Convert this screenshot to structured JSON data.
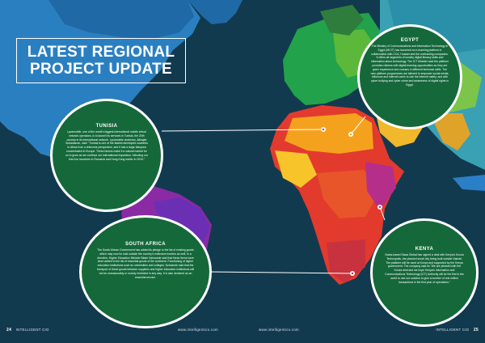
{
  "title": {
    "line1": "LATEST REGIONAL",
    "line2": "PROJECT UPDATE"
  },
  "callouts": {
    "egypt": {
      "heading": "EGYPT",
      "body": "The Ministry of Communications and Information Technology in Egypt (MCIT) has launched an e-learning platform in collaboration with CCA, Huawei and the contracting companies. It offers all segments of society digital literacy skills and information about technology. The ICT Minister said the platform provides citizens with digital learning opportunities as they are given experience and courses in different technical skills. The new platform programmes are tailored to empower social media, influence and Internet users to use the Internet safely, and with cyber bullying and cyber crime and awareness of digital rights in Egypt."
    },
    "tunisia": {
      "heading": "TUNISIA",
      "body": "Lycamobile, one of the world's biggest international mobile virtual network operators, is to launch its services in Tunisia, the 20th country in its international network. Lycamobile chairman, Allirajah Subaskaran, said: \"Tunisia is one of the fastest developed countries in Africa from a telecoms perspective, and it has a large diaspora concentrated in Europe. These factors make it a natural market for us to grow as we continue our international expansion, following our first four launches in Romania and Hong Kong earlier in 2015.\""
    },
    "south_africa": {
      "heading": "SOUTH AFRICA",
      "body": "The South African Government has added its pledge to the list of existing goods which may now be sold outside the country's extensive borders as well. In a directive, Higher Education Minister Blade Nzimande said that these items have been added to the list of essential goods of the continent. Functioning of higher education institutions such as universities and colleges. Nzimande said that the transport of these goods between suppliers and higher education institutions will not be unreasonably or unduly restricted in any way. It is also declared as an essential service."
    },
    "kenya": {
      "heading": "KENYA",
      "body": "Swiss-based Sawa Global has signed a deal with Kenya's Konza Technopolis, the planned smart city being built outside Nairobi. The platform will be used at Konza and supported by the Kenya government. The company said its \"We are pleased with the Konza deal and we hope Kenya's Information and Communications Technology (ICT) Authority will be the first in the world to use our solution to give a number of one million transactions in the first year of operations.\""
    }
  },
  "footer": {
    "left_page": "24",
    "left_brand": "INTELLIGENT CIO",
    "left_url": "www.intelligentcio.com",
    "right_url": "www.intelligentcio.com",
    "right_brand": "INTELLIGENT CIO",
    "right_page": "25"
  },
  "colors": {
    "background": "#123a4f",
    "circle_fill": "#15683a",
    "circle_border": "#ffffff"
  },
  "icons": [
    "pin-icon"
  ]
}
